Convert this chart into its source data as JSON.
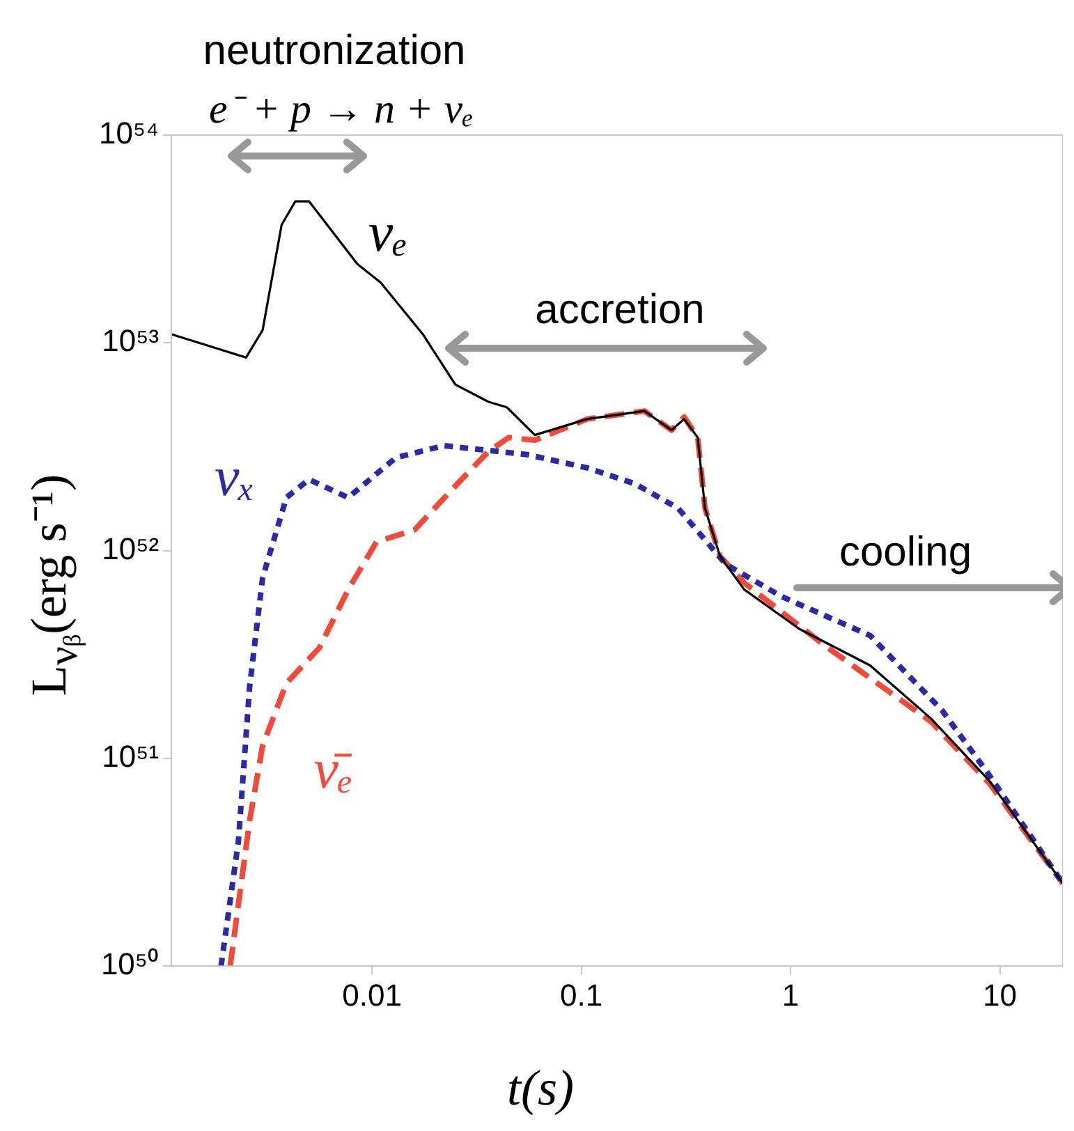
{
  "chart_data": {
    "type": "line",
    "xlabel": "t(s)",
    "ylabel": "L$_{νᵦ}$(erg s⁻¹)",
    "annotations": [
      "neutronization",
      "e⁻ + p → n + νₑ",
      "accretion",
      "cooling"
    ],
    "log": "xy",
    "grid": false,
    "legend": false,
    "marker": "none",
    "xlim": [
      0.0011,
      20
    ],
    "xticks": [
      0.01,
      0.1,
      1,
      10
    ],
    "ylim": [
      1e+50,
      1e+54
    ],
    "yticks": [
      {
        "value": 1e+50,
        "label": "10⁵⁰"
      },
      {
        "value": 1e+51,
        "label": "10⁵¹"
      },
      {
        "value": 1e+52,
        "label": "10⁵²"
      },
      {
        "value": 1e+53,
        "label": "10⁵³"
      },
      {
        "value": 1e+54,
        "label": "10⁵⁴"
      }
    ],
    "series": [
      {
        "name": "νₑ",
        "color": "#000000",
        "line_style": "solid",
        "x": [
          0.0011,
          0.0025,
          0.003,
          0.0037,
          0.0043,
          0.005,
          0.0085,
          0.011,
          0.0175,
          0.025,
          0.036,
          0.044,
          0.06,
          0.107,
          0.2,
          0.27,
          0.31,
          0.36,
          0.39,
          0.46,
          0.6,
          1.1,
          2.4,
          4.7,
          8.9,
          20
        ],
        "values": [
          1.1e+53,
          8.5e+52,
          1.15e+53,
          3.7e+53,
          4.8e+53,
          4.8e+53,
          2.4e+53,
          1.95e+53,
          1.1e+53,
          6.3e+52,
          5.2e+52,
          4.9e+52,
          3.6e+52,
          4.3e+52,
          4.7e+52,
          3.8e+52,
          4.3e+52,
          3.5e+52,
          1.6e+52,
          9.4e+51,
          6.5e+51,
          4.2e+51,
          2.8e+51,
          1.55e+51,
          7.8e+50,
          2.5e+50
        ]
      },
      {
        "name": "νₓ",
        "color": "#2a2aa8",
        "line_style": "dotted",
        "x": [
          0.0019,
          0.0023,
          0.0026,
          0.003,
          0.0039,
          0.005,
          0.0077,
          0.013,
          0.022,
          0.055,
          0.107,
          0.18,
          0.29,
          0.37,
          0.49,
          0.91,
          2.4,
          5.3,
          8.9,
          20
        ],
        "values": [
          1e+50,
          4e+50,
          2.2e+51,
          7.4e+51,
          1.8e+52,
          2.2e+52,
          1.8e+52,
          2.8e+52,
          3.2e+52,
          2.9e+52,
          2.5e+52,
          2.1e+52,
          1.6e+52,
          1.2e+52,
          8.6e+51,
          6e+51,
          3.9e+51,
          1.7e+51,
          8.3e+50,
          2.5e+50
        ]
      },
      {
        "name": "ν̄ₑ",
        "color": "#f04b3a",
        "line_style": "dashed",
        "x": [
          0.0021,
          0.0026,
          0.003,
          0.0039,
          0.0056,
          0.0077,
          0.0105,
          0.016,
          0.024,
          0.036,
          0.045,
          0.06,
          0.107,
          0.2,
          0.27,
          0.31,
          0.36,
          0.39,
          0.46,
          0.6,
          1.45,
          4.7,
          8.9,
          20
        ],
        "values": [
          1e+50,
          5e+50,
          1.15e+51,
          2.3e+51,
          3.4e+51,
          6.5e+51,
          1.1e+52,
          1.26e+52,
          1.96e+52,
          3e+52,
          3.5e+52,
          3.4e+52,
          4.3e+52,
          4.7e+52,
          3.8e+52,
          4.4e+52,
          3.5e+52,
          1.6e+52,
          9.4e+51,
          7e+51,
          3.5e+51,
          1.5e+51,
          7.6e+50,
          2.5e+50
        ]
      }
    ]
  }
}
